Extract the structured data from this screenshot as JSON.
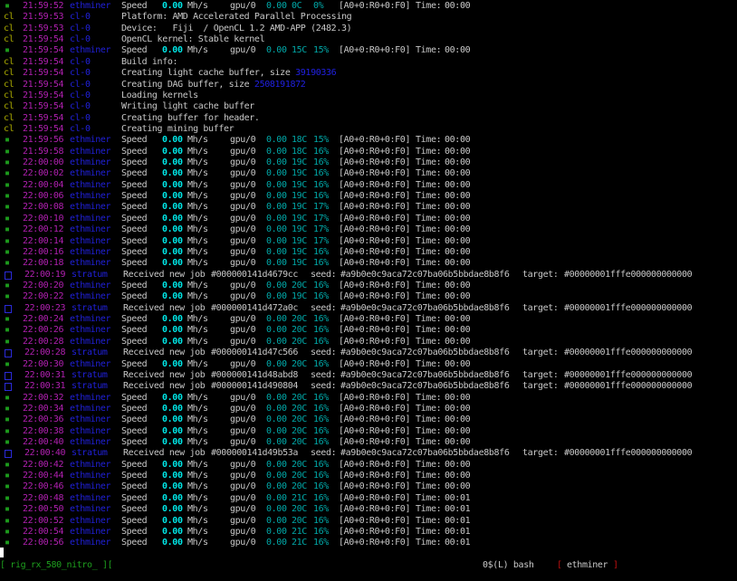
{
  "labels": {
    "speed": "Speed",
    "rate": "0.00",
    "unit": "Mh/s",
    "gpu": "gpu/0",
    "gpu_rate": "0.00",
    "stats": "[A0+0:R0+0:F0]",
    "time_label": "Time:",
    "received": "Received new job",
    "seed_label": "seed:",
    "seed": "#a9b0e0c9aca72c07ba06b5bbdae8b8f6",
    "target_label": "target:",
    "target": "#00000001fffe000000000000"
  },
  "colors": {
    "time": "#b020b0",
    "source": "#2020d8",
    "rate": "#00e5e5",
    "gpu_stats": "#00a8a8",
    "ok_icon": "#1c9a1c",
    "cl_icon": "#a8a800"
  },
  "rows": [
    {
      "type": "speed",
      "icon": "m",
      "time": "21:59:52",
      "source": "ethminer",
      "temp": "0C",
      "fan": "0%",
      "elapsed": "00:00"
    },
    {
      "type": "cl",
      "icon": "cl",
      "time": "21:59:53",
      "source": "cl-0",
      "text": "Platform: AMD Accelerated Parallel Processing"
    },
    {
      "type": "cl",
      "icon": "cl",
      "time": "21:59:53",
      "source": "cl-0",
      "text": "Device:   Fiji  / OpenCL 1.2 AMD-APP (2482.3)"
    },
    {
      "type": "cl",
      "icon": "cl",
      "time": "21:59:54",
      "source": "cl-0",
      "text": "OpenCL kernel: Stable kernel"
    },
    {
      "type": "speed",
      "icon": "m",
      "time": "21:59:54",
      "source": "ethminer",
      "temp": "15C",
      "fan": "15%",
      "elapsed": "00:00"
    },
    {
      "type": "cl",
      "icon": "cl",
      "time": "21:59:54",
      "source": "cl-0",
      "text": "Build info:"
    },
    {
      "type": "cl",
      "icon": "cl",
      "time": "21:59:54",
      "source": "cl-0",
      "text": "Creating light cache buffer, size ",
      "value": "39190336"
    },
    {
      "type": "cl",
      "icon": "cl",
      "time": "21:59:54",
      "source": "cl-0",
      "text": "Creating DAG buffer, size ",
      "value": "2508191872"
    },
    {
      "type": "cl",
      "icon": "cl",
      "time": "21:59:54",
      "source": "cl-0",
      "text": "Loading kernels"
    },
    {
      "type": "cl",
      "icon": "cl",
      "time": "21:59:54",
      "source": "cl-0",
      "text": "Writing light cache buffer"
    },
    {
      "type": "cl",
      "icon": "cl",
      "time": "21:59:54",
      "source": "cl-0",
      "text": "Creating buffer for header."
    },
    {
      "type": "cl",
      "icon": "cl",
      "time": "21:59:54",
      "source": "cl-0",
      "text": "Creating mining buffer"
    },
    {
      "type": "speed",
      "icon": "m",
      "time": "21:59:56",
      "source": "ethminer",
      "temp": "18C",
      "fan": "15%",
      "elapsed": "00:00"
    },
    {
      "type": "speed",
      "icon": "m",
      "time": "21:59:58",
      "source": "ethminer",
      "temp": "18C",
      "fan": "16%",
      "elapsed": "00:00"
    },
    {
      "type": "speed",
      "icon": "m",
      "time": "22:00:00",
      "source": "ethminer",
      "temp": "19C",
      "fan": "16%",
      "elapsed": "00:00"
    },
    {
      "type": "speed",
      "icon": "m",
      "time": "22:00:02",
      "source": "ethminer",
      "temp": "19C",
      "fan": "16%",
      "elapsed": "00:00"
    },
    {
      "type": "speed",
      "icon": "m",
      "time": "22:00:04",
      "source": "ethminer",
      "temp": "19C",
      "fan": "16%",
      "elapsed": "00:00"
    },
    {
      "type": "speed",
      "icon": "m",
      "time": "22:00:06",
      "source": "ethminer",
      "temp": "19C",
      "fan": "16%",
      "elapsed": "00:00"
    },
    {
      "type": "speed",
      "icon": "m",
      "time": "22:00:08",
      "source": "ethminer",
      "temp": "19C",
      "fan": "17%",
      "elapsed": "00:00"
    },
    {
      "type": "speed",
      "icon": "m",
      "time": "22:00:10",
      "source": "ethminer",
      "temp": "19C",
      "fan": "17%",
      "elapsed": "00:00"
    },
    {
      "type": "speed",
      "icon": "m",
      "time": "22:00:12",
      "source": "ethminer",
      "temp": "19C",
      "fan": "17%",
      "elapsed": "00:00"
    },
    {
      "type": "speed",
      "icon": "m",
      "time": "22:00:14",
      "source": "ethminer",
      "temp": "19C",
      "fan": "17%",
      "elapsed": "00:00"
    },
    {
      "type": "speed",
      "icon": "m",
      "time": "22:00:16",
      "source": "ethminer",
      "temp": "19C",
      "fan": "16%",
      "elapsed": "00:00"
    },
    {
      "type": "speed",
      "icon": "m",
      "time": "22:00:18",
      "source": "ethminer",
      "temp": "19C",
      "fan": "16%",
      "elapsed": "00:00"
    },
    {
      "type": "job",
      "icon": "stratum",
      "time": "22:00:19",
      "source": "stratum",
      "job": "#000000141d4679cc"
    },
    {
      "type": "speed",
      "icon": "m",
      "time": "22:00:20",
      "source": "ethminer",
      "temp": "20C",
      "fan": "16%",
      "elapsed": "00:00"
    },
    {
      "type": "speed",
      "icon": "m",
      "time": "22:00:22",
      "source": "ethminer",
      "temp": "19C",
      "fan": "16%",
      "elapsed": "00:00"
    },
    {
      "type": "job",
      "icon": "stratum",
      "time": "22:00:23",
      "source": "stratum",
      "job": "#000000141d472a0c"
    },
    {
      "type": "speed",
      "icon": "m",
      "time": "22:00:24",
      "source": "ethminer",
      "temp": "20C",
      "fan": "16%",
      "elapsed": "00:00"
    },
    {
      "type": "speed",
      "icon": "m",
      "time": "22:00:26",
      "source": "ethminer",
      "temp": "20C",
      "fan": "16%",
      "elapsed": "00:00"
    },
    {
      "type": "speed",
      "icon": "m",
      "time": "22:00:28",
      "source": "ethminer",
      "temp": "20C",
      "fan": "16%",
      "elapsed": "00:00"
    },
    {
      "type": "job",
      "icon": "stratum",
      "time": "22:00:28",
      "source": "stratum",
      "job": "#000000141d47c566"
    },
    {
      "type": "speed",
      "icon": "m",
      "time": "22:00:30",
      "source": "ethminer",
      "temp": "20C",
      "fan": "16%",
      "elapsed": "00:00"
    },
    {
      "type": "job",
      "icon": "stratum",
      "time": "22:00:31",
      "source": "stratum",
      "job": "#000000141d48abd8"
    },
    {
      "type": "job",
      "icon": "stratum",
      "time": "22:00:31",
      "source": "stratum",
      "job": "#000000141d490804"
    },
    {
      "type": "speed",
      "icon": "m",
      "time": "22:00:32",
      "source": "ethminer",
      "temp": "20C",
      "fan": "16%",
      "elapsed": "00:00"
    },
    {
      "type": "speed",
      "icon": "m",
      "time": "22:00:34",
      "source": "ethminer",
      "temp": "20C",
      "fan": "16%",
      "elapsed": "00:00"
    },
    {
      "type": "speed",
      "icon": "m",
      "time": "22:00:36",
      "source": "ethminer",
      "temp": "20C",
      "fan": "16%",
      "elapsed": "00:00"
    },
    {
      "type": "speed",
      "icon": "m",
      "time": "22:00:38",
      "source": "ethminer",
      "temp": "20C",
      "fan": "16%",
      "elapsed": "00:00"
    },
    {
      "type": "speed",
      "icon": "m",
      "time": "22:00:40",
      "source": "ethminer",
      "temp": "20C",
      "fan": "16%",
      "elapsed": "00:00"
    },
    {
      "type": "job",
      "icon": "stratum",
      "time": "22:00:40",
      "source": "stratum",
      "job": "#000000141d49b53a"
    },
    {
      "type": "speed",
      "icon": "m",
      "time": "22:00:42",
      "source": "ethminer",
      "temp": "20C",
      "fan": "16%",
      "elapsed": "00:00"
    },
    {
      "type": "speed",
      "icon": "m",
      "time": "22:00:44",
      "source": "ethminer",
      "temp": "20C",
      "fan": "16%",
      "elapsed": "00:00"
    },
    {
      "type": "speed",
      "icon": "m",
      "time": "22:00:46",
      "source": "ethminer",
      "temp": "20C",
      "fan": "16%",
      "elapsed": "00:00"
    },
    {
      "type": "speed",
      "icon": "m",
      "time": "22:00:48",
      "source": "ethminer",
      "temp": "21C",
      "fan": "16%",
      "elapsed": "00:01"
    },
    {
      "type": "speed",
      "icon": "m",
      "time": "22:00:50",
      "source": "ethminer",
      "temp": "20C",
      "fan": "16%",
      "elapsed": "00:01"
    },
    {
      "type": "speed",
      "icon": "m",
      "time": "22:00:52",
      "source": "ethminer",
      "temp": "20C",
      "fan": "16%",
      "elapsed": "00:01"
    },
    {
      "type": "speed",
      "icon": "m",
      "time": "22:00:54",
      "source": "ethminer",
      "temp": "21C",
      "fan": "16%",
      "elapsed": "00:01"
    },
    {
      "type": "speed",
      "icon": "m",
      "time": "22:00:56",
      "source": "ethminer",
      "temp": "21C",
      "fan": "16%",
      "elapsed": "00:01"
    }
  ],
  "status_bar": {
    "session": "[ rig_rx_580_nitro_ ][",
    "window_index": "0$(L) bash",
    "active_open": "[",
    "active_window": "ethminer",
    "active_close": "]"
  }
}
